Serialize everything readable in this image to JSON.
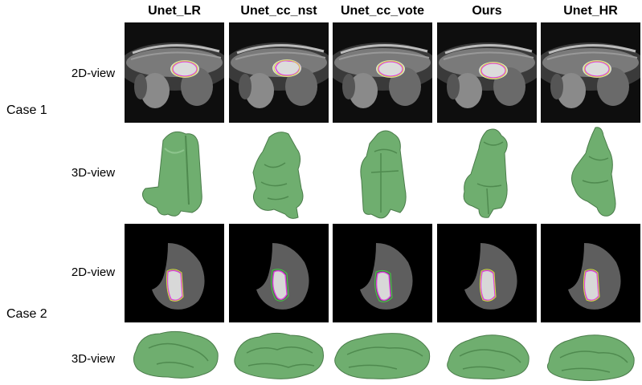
{
  "columns": [
    "Unet_LR",
    "Unet_cc_nst",
    "Unet_cc_vote",
    "Ours",
    "Unet_HR"
  ],
  "cases": [
    {
      "label": "Case 1",
      "rows": [
        {
          "label": "2D-view"
        },
        {
          "label": "3D-view"
        }
      ]
    },
    {
      "label": "Case 2",
      "rows": [
        {
          "label": "2D-view"
        },
        {
          "label": "3D-view"
        }
      ]
    }
  ],
  "colors": {
    "mesh_green": "#6fae6f",
    "contour_magenta": "#e040e0",
    "contour_yellow": "#d8e040",
    "contour_green": "#40d040"
  }
}
